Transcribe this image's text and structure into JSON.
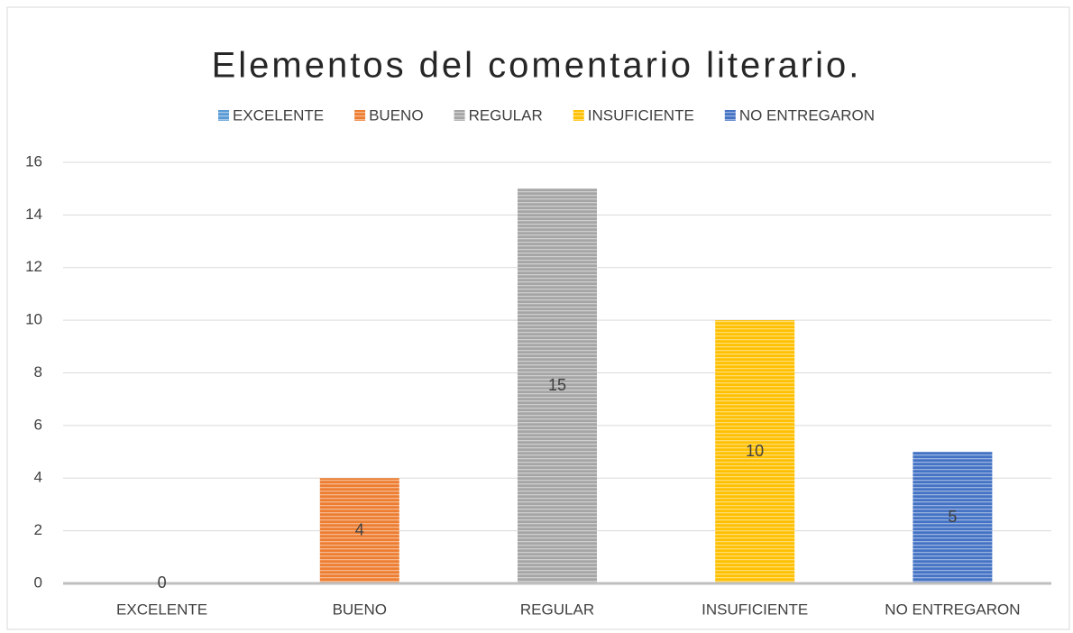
{
  "chart_data": {
    "type": "bar",
    "title": "Elementos del comentario literario.",
    "categories": [
      "EXCELENTE",
      "BUENO",
      "REGULAR",
      "INSUFICIENTE",
      "NO ENTREGARON"
    ],
    "values": [
      0,
      4,
      15,
      10,
      5
    ],
    "colors": [
      "#5b9bd5",
      "#ed7d31",
      "#a5a5a5",
      "#ffc000",
      "#4472c4"
    ],
    "ylim": [
      0,
      16
    ],
    "yticks": [
      0,
      2,
      4,
      6,
      8,
      10,
      12,
      14,
      16
    ],
    "grid": true,
    "legend": "top"
  }
}
